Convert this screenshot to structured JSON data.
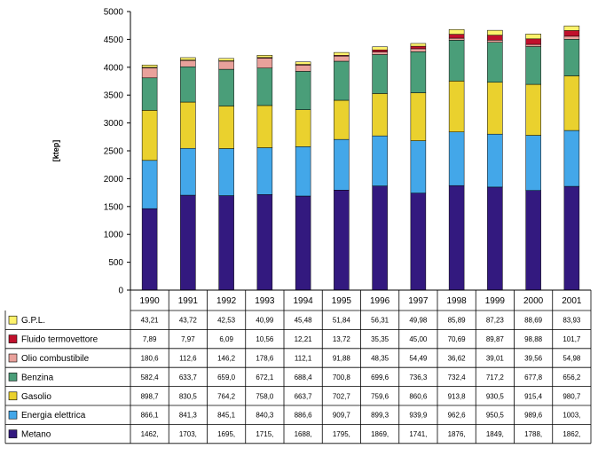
{
  "chart_data": {
    "type": "bar",
    "stacked": true,
    "ylabel": "[ktep]",
    "ylim": [
      0,
      5000
    ],
    "yticks": [
      "0",
      "500",
      "1000",
      "1500",
      "2000",
      "2500",
      "3000",
      "3500",
      "4000",
      "4500",
      "5000"
    ],
    "categories": [
      "1990",
      "1991",
      "1992",
      "1993",
      "1994",
      "1995",
      "1996",
      "1997",
      "1998",
      "1999",
      "2000",
      "2001"
    ],
    "grid": false,
    "legend_placement": "data table below chart",
    "series": [
      {
        "name": "Metano",
        "color": "#33197f",
        "values": [
          1462,
          1703,
          1695,
          1715,
          1688,
          1795,
          1869,
          1741,
          1876,
          1849,
          1788,
          1862
        ],
        "labels": [
          "1462,",
          "1703,",
          "1695,",
          "1715,",
          "1688,",
          "1795,",
          "1869,",
          "1741,",
          "1876,",
          "1849,",
          "1788,",
          "1862,"
        ]
      },
      {
        "name": "Energia elettrica",
        "color": "#43a7e9",
        "values": [
          866.1,
          841.3,
          845.1,
          840.3,
          886.6,
          909.7,
          899.3,
          939.9,
          962.6,
          950.5,
          989.6,
          1003
        ],
        "labels": [
          "866,1",
          "841,3",
          "845,1",
          "840,3",
          "886,6",
          "909,7",
          "899,3",
          "939,9",
          "962,6",
          "950,5",
          "989,6",
          "1003,"
        ]
      },
      {
        "name": "Gasolio",
        "color": "#ead12e",
        "values": [
          898.7,
          830.5,
          764.2,
          758.0,
          663.7,
          702.7,
          759.6,
          860.6,
          913.8,
          930.5,
          915.4,
          980.7
        ],
        "labels": [
          "898,7",
          "830,5",
          "764,2",
          "758,0",
          "663,7",
          "702,7",
          "759,6",
          "860,6",
          "913,8",
          "930,5",
          "915,4",
          "980,7"
        ]
      },
      {
        "name": "Benzina",
        "color": "#4a9e79",
        "values": [
          582.4,
          633.7,
          659.0,
          672.1,
          688.4,
          700.8,
          699.6,
          736.3,
          732.4,
          717.2,
          677.8,
          656.2
        ],
        "labels": [
          "582,4",
          "633,7",
          "659,0",
          "672,1",
          "688,4",
          "700,8",
          "699,6",
          "736,3",
          "732,4",
          "717,2",
          "677,8",
          "656,2"
        ]
      },
      {
        "name": "Olio combustibile",
        "color": "#e9a19b",
        "values": [
          180.6,
          112.6,
          146.2,
          178.6,
          112.1,
          91.88,
          48.35,
          54.49,
          36.62,
          39.01,
          39.56,
          54.98
        ],
        "labels": [
          "180,6",
          "112,6",
          "146,2",
          "178,6",
          "112,1",
          "91,88",
          "48,35",
          "54,49",
          "36,62",
          "39,01",
          "39,56",
          "54,98"
        ]
      },
      {
        "name": "Fluido termovettore",
        "color": "#c0102c",
        "values": [
          7.89,
          7.97,
          6.09,
          10.56,
          12.21,
          13.72,
          35.35,
          45.0,
          70.69,
          89.87,
          98.88,
          101.7
        ],
        "labels": [
          "7,89",
          "7,97",
          "6,09",
          "10,56",
          "12,21",
          "13,72",
          "35,35",
          "45,00",
          "70,69",
          "89,87",
          "98,88",
          "101,7"
        ]
      },
      {
        "name": "G.P.L.",
        "color": "#fdf26b",
        "values": [
          43.21,
          43.72,
          42.53,
          40.99,
          45.48,
          51.84,
          56.31,
          49.98,
          85.89,
          87.23,
          88.69,
          83.93
        ],
        "labels": [
          "43,21",
          "43,72",
          "42,53",
          "40,99",
          "45,48",
          "51,84",
          "56,31",
          "49,98",
          "85,89",
          "87,23",
          "88,69",
          "83,93"
        ]
      }
    ]
  }
}
